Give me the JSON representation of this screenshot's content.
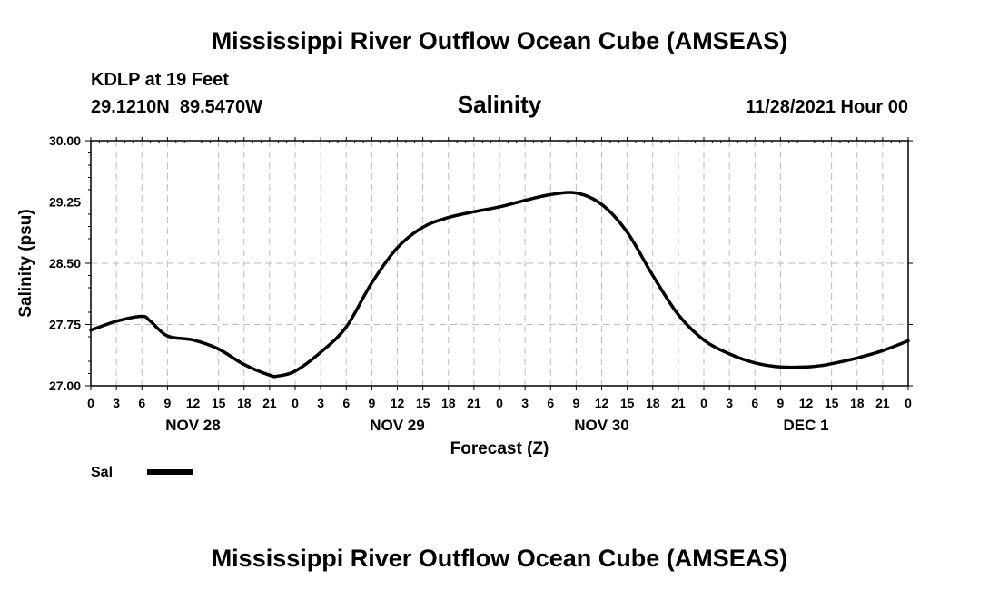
{
  "page_title": "Mississippi River Outflow Ocean Cube (AMSEAS)",
  "footer_title": "Mississippi River Outflow Ocean Cube (AMSEAS)",
  "station": {
    "name_depth": "KDLP at 19 Feet",
    "coords": "29.1210N  89.5470W"
  },
  "variable": "Salinity",
  "run_time": "11/28/2021 Hour 00",
  "chart_data": {
    "type": "line",
    "title": "Salinity",
    "xlabel": "Forecast (Z)",
    "ylabel": "Salinity (psu)",
    "ylim": [
      27.0,
      30.0
    ],
    "yticks": [
      "27.00",
      "27.75",
      "28.50",
      "29.25",
      "30.00"
    ],
    "xlim": [
      0,
      96
    ],
    "xtick_labels": [
      "0",
      "3",
      "6",
      "9",
      "12",
      "15",
      "18",
      "21",
      "0",
      "3",
      "6",
      "9",
      "12",
      "15",
      "18",
      "21",
      "0",
      "3",
      "6",
      "9",
      "12",
      "15",
      "18",
      "21",
      "0",
      "3",
      "6",
      "9",
      "12",
      "15",
      "18",
      "21",
      "0"
    ],
    "day_labels": [
      {
        "label": "NOV 28",
        "hour": 12
      },
      {
        "label": "NOV 29",
        "hour": 36
      },
      {
        "label": "NOV 30",
        "hour": 60
      },
      {
        "label": "DEC 1",
        "hour": 84
      }
    ],
    "grid": true,
    "legend": "bottom-left",
    "series": [
      {
        "name": "Sal",
        "color": "#000000",
        "x": [
          0,
          3,
          6,
          7,
          9,
          12,
          15,
          18,
          21,
          22,
          24,
          27,
          30,
          33,
          36,
          39,
          42,
          45,
          48,
          51,
          54,
          57,
          60,
          63,
          66,
          69,
          72,
          75,
          78,
          81,
          84,
          86,
          87,
          90,
          93,
          96
        ],
        "y": [
          27.68,
          27.79,
          27.85,
          27.79,
          27.61,
          27.56,
          27.45,
          27.26,
          27.13,
          27.12,
          27.18,
          27.41,
          27.72,
          28.26,
          28.69,
          28.94,
          29.06,
          29.13,
          29.19,
          29.27,
          29.34,
          29.36,
          29.22,
          28.88,
          28.35,
          27.87,
          27.56,
          27.39,
          27.28,
          27.23,
          27.23,
          27.25,
          27.27,
          27.34,
          27.43,
          27.55
        ]
      }
    ]
  }
}
